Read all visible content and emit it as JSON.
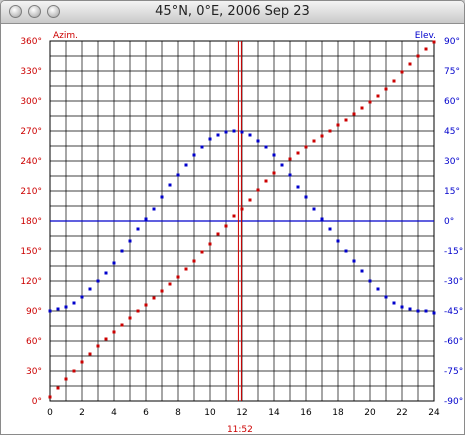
{
  "window": {
    "title": "45°N, 0°E, 2006 Sep 23"
  },
  "colors": {
    "azimuth": "#cc0000",
    "elevation": "#0000cc",
    "grid": "#000000",
    "noon_line": "#cc0000",
    "horizon_line": "#0000cc",
    "background": "#ffffff"
  },
  "chart_data": {
    "type": "scatter",
    "title": "45°N, 0°E, 2006 Sep 23",
    "grid": true,
    "x_axis": {
      "range": [
        0,
        24
      ],
      "ticks": [
        0,
        2,
        4,
        6,
        8,
        10,
        12,
        14,
        16,
        18,
        20,
        22,
        24
      ],
      "tick_labels": [
        "0",
        "2",
        "4",
        "6",
        "8",
        "10",
        "12",
        "14",
        "16",
        "18",
        "20",
        "22",
        "24"
      ],
      "minor_step": 1
    },
    "y_left": {
      "label": "Azim.",
      "range": [
        0,
        360
      ],
      "ticks": [
        0,
        30,
        60,
        90,
        120,
        150,
        180,
        210,
        240,
        270,
        300,
        330,
        360
      ],
      "tick_labels": [
        "0°",
        "30°",
        "60°",
        "90°",
        "120°",
        "150°",
        "180°",
        "210°",
        "240°",
        "270°",
        "300°",
        "330°",
        "360°"
      ],
      "minor_step": 15
    },
    "y_right": {
      "label": "Elev.",
      "range": [
        -90,
        90
      ],
      "ticks": [
        -90,
        -75,
        -60,
        -45,
        -30,
        -15,
        0,
        15,
        30,
        45,
        60,
        75,
        90
      ],
      "tick_labels": [
        "-90°",
        "-75°",
        "-60°",
        "-45°",
        "-30°",
        "-15°",
        "0°",
        "15°",
        "30°",
        "45°",
        "60°",
        "75°",
        "90°"
      ]
    },
    "annotations": {
      "noon_time": 11.87,
      "noon_label": "11:52",
      "horizon_elevation": 0
    },
    "series": [
      {
        "axis": "left",
        "color": "#cc0000",
        "x": [
          0,
          0.5,
          1,
          1.5,
          2,
          2.5,
          3,
          3.5,
          4,
          4.5,
          5,
          5.5,
          6,
          6.5,
          7,
          7.5,
          8,
          8.5,
          9,
          9.5,
          10,
          10.5,
          11,
          11.5,
          12,
          12.5,
          13,
          13.5,
          14,
          14.5,
          15,
          15.5,
          16,
          16.5,
          17,
          17.5,
          18,
          18.5,
          19,
          19.5,
          20,
          20.5,
          21,
          21.5,
          22,
          22.5,
          23,
          23.5,
          24
        ],
        "values": [
          4,
          13,
          22,
          30,
          39,
          47,
          55,
          62,
          69,
          76,
          83,
          90,
          96,
          103,
          110,
          117,
          124,
          132,
          140,
          149,
          157,
          167,
          175,
          185,
          192,
          201,
          211,
          220,
          228,
          236,
          242,
          248,
          254,
          260,
          265,
          270,
          276,
          281,
          287,
          293,
          299,
          305,
          312,
          320,
          329,
          337,
          345,
          352,
          359
        ]
      },
      {
        "axis": "right",
        "color": "#0000cc",
        "x": [
          0,
          0.5,
          1,
          1.5,
          2,
          2.5,
          3,
          3.5,
          4,
          4.5,
          5,
          5.5,
          6,
          6.5,
          7,
          7.5,
          8,
          8.5,
          9,
          9.5,
          10,
          10.5,
          11,
          11.5,
          12,
          12.5,
          13,
          13.5,
          14,
          14.5,
          15,
          15.5,
          16,
          16.5,
          17,
          17.5,
          18,
          18.5,
          19,
          19.5,
          20,
          20.5,
          21,
          21.5,
          22,
          22.5,
          23,
          23.5,
          24
        ],
        "values": [
          -45,
          -44,
          -43,
          -41,
          -38,
          -34,
          -30,
          -26,
          -21,
          -15,
          -10,
          -4,
          1,
          6,
          12,
          18,
          23,
          28,
          33,
          37,
          41,
          43,
          44.5,
          45,
          44.5,
          43,
          40,
          37,
          33,
          28,
          23,
          17,
          12,
          6,
          1,
          -4,
          -10,
          -15,
          -20,
          -25,
          -30,
          -34,
          -38,
          -41,
          -43,
          -44,
          -45,
          -45,
          -46
        ]
      }
    ]
  }
}
